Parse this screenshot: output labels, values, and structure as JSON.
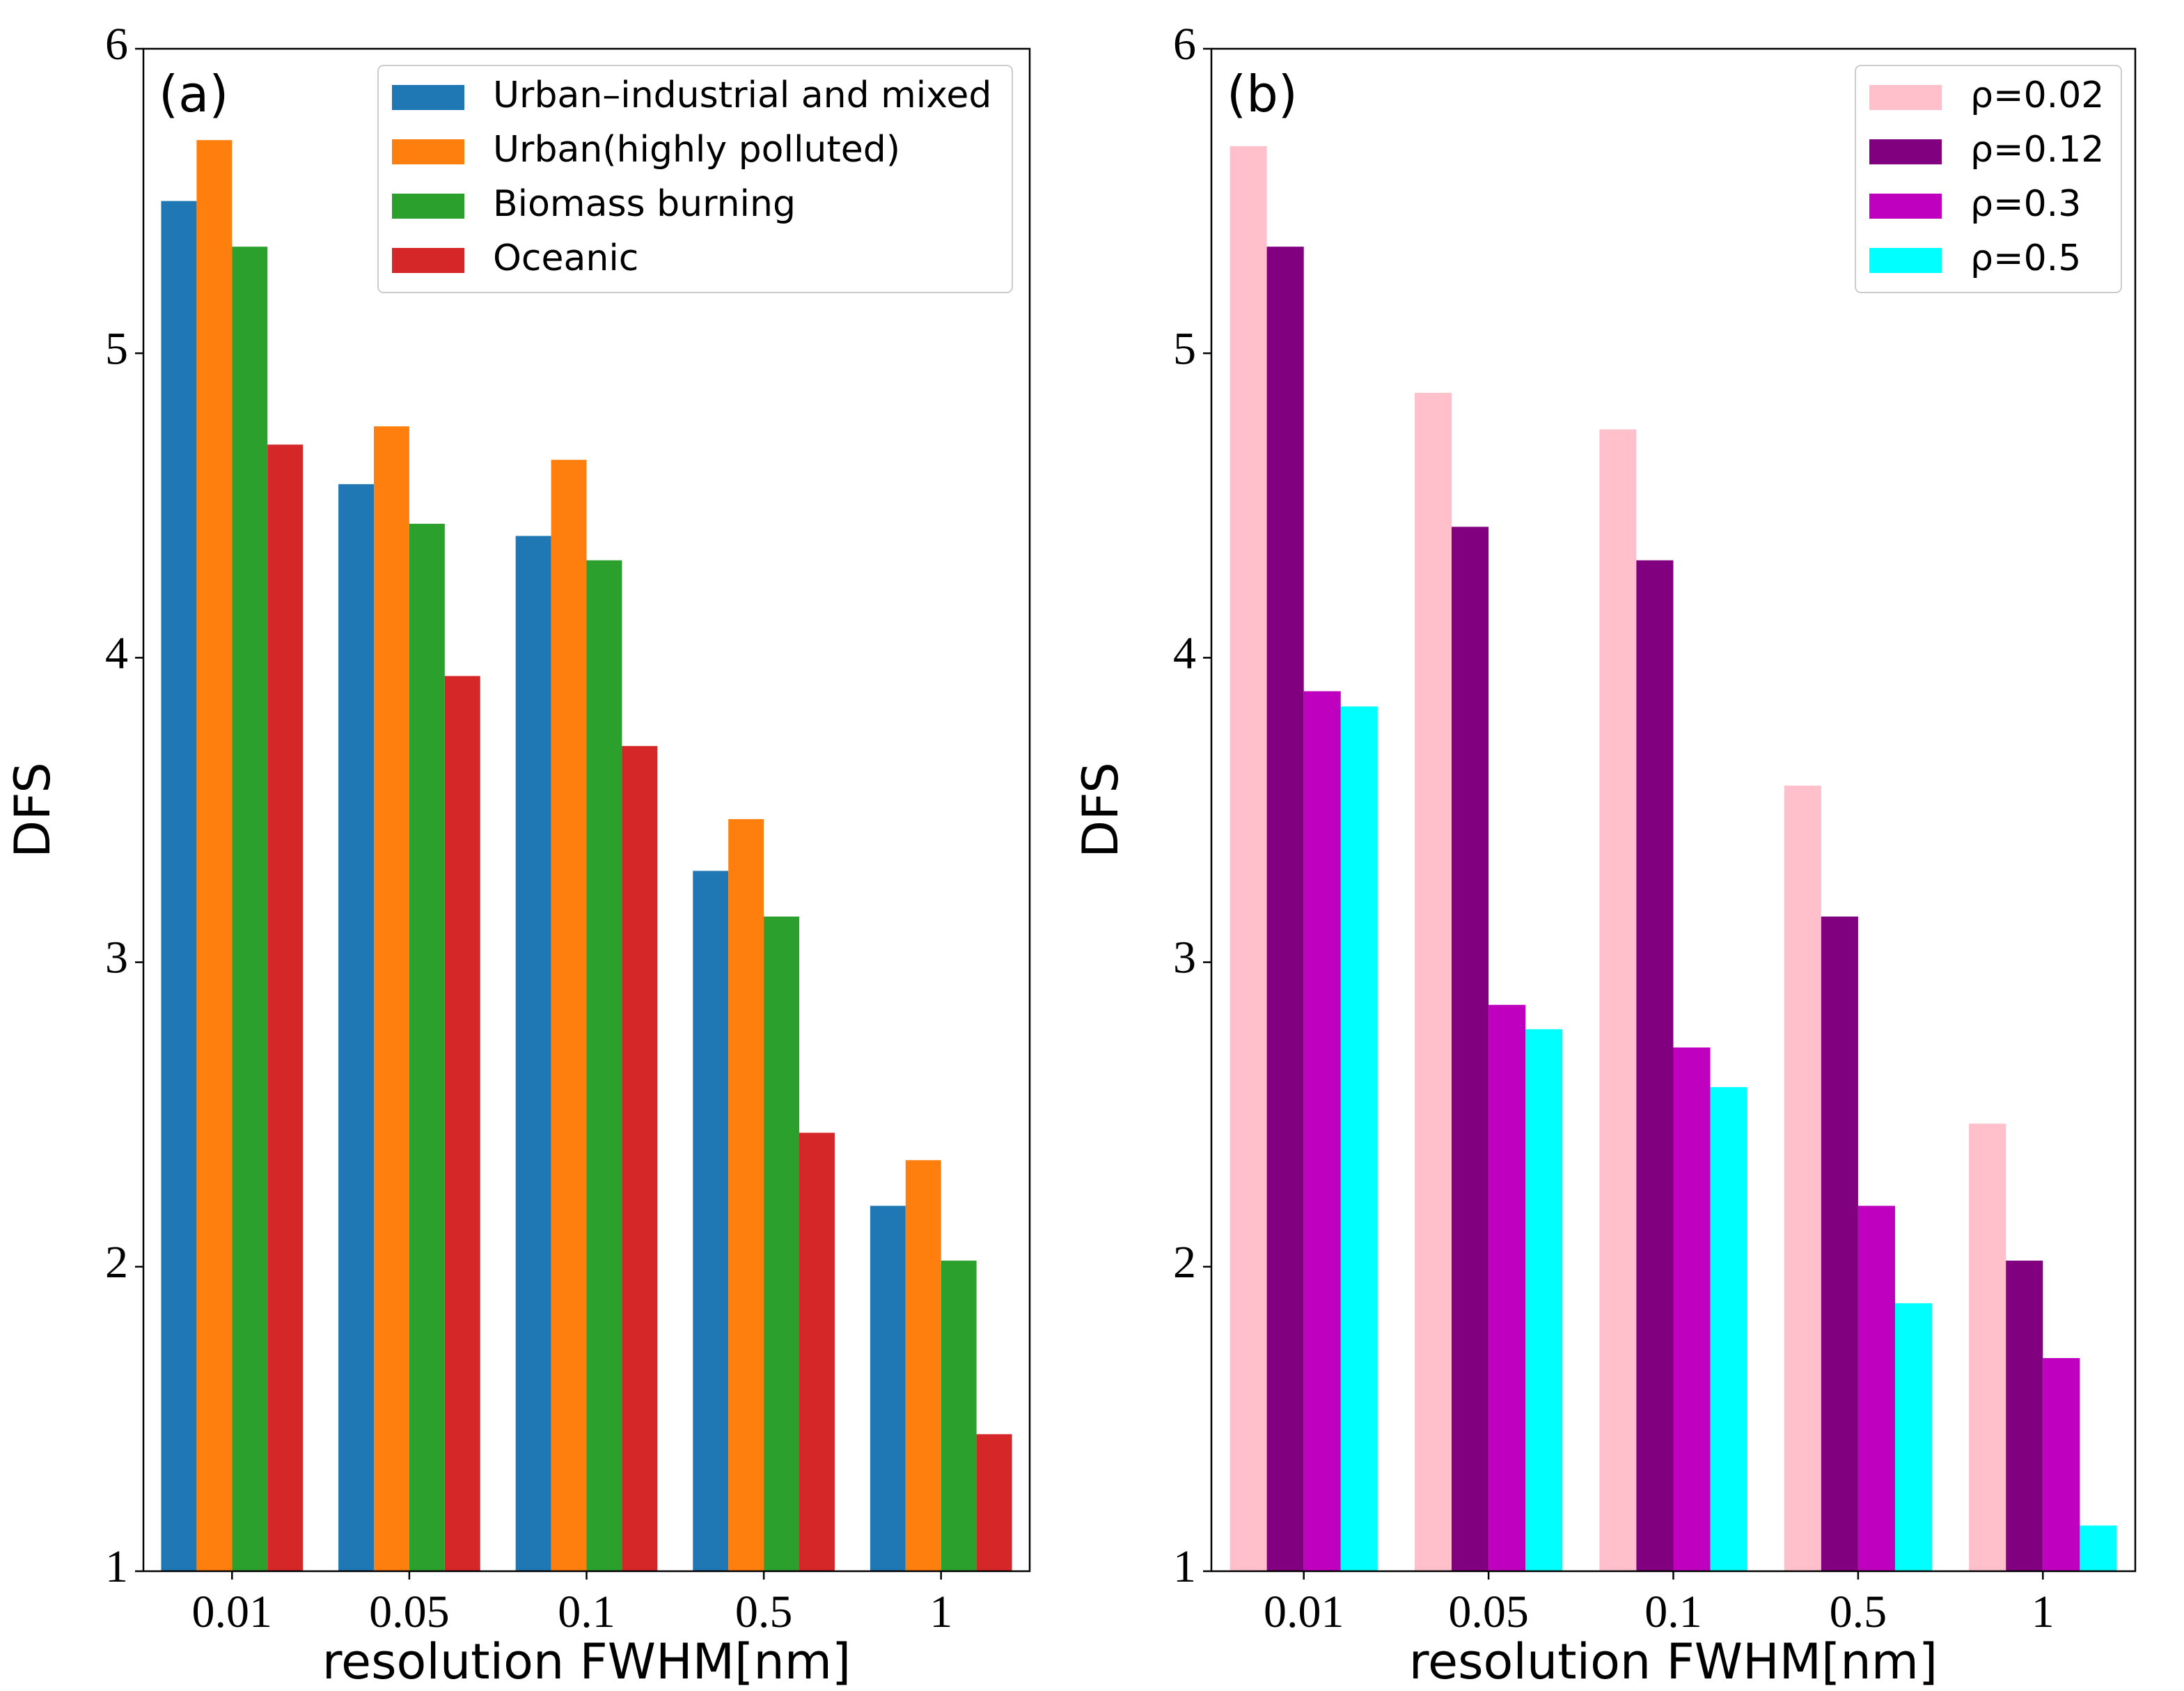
{
  "chart_data": [
    {
      "type": "bar",
      "panel_label": "(a)",
      "xlabel": "resolution FWHM[nm]",
      "ylabel": "DFS",
      "ylim": [
        1,
        6
      ],
      "yticks": [
        "1",
        "2",
        "3",
        "4",
        "5",
        "6"
      ],
      "categories": [
        "0.01",
        "0.05",
        "0.1",
        "0.5",
        "1"
      ],
      "legend_position": "top-right",
      "series": [
        {
          "name": "Urban–industrial and mixed",
          "color": "#1f77b4",
          "values": [
            5.5,
            4.57,
            4.4,
            3.3,
            2.2
          ]
        },
        {
          "name": "Urban(highly polluted)",
          "color": "#ff7f0e",
          "values": [
            5.7,
            4.76,
            4.65,
            3.47,
            2.35
          ]
        },
        {
          "name": "Biomass burning",
          "color": "#2ca02c",
          "values": [
            5.35,
            4.44,
            4.32,
            3.15,
            2.02
          ]
        },
        {
          "name": "Oceanic",
          "color": "#d62728",
          "values": [
            4.7,
            3.94,
            3.71,
            2.44,
            1.45
          ]
        }
      ]
    },
    {
      "type": "bar",
      "panel_label": "(b)",
      "xlabel": "resolution FWHM[nm]",
      "ylabel": "DFS",
      "ylim": [
        1,
        6
      ],
      "yticks": [
        "1",
        "2",
        "3",
        "4",
        "5",
        "6"
      ],
      "categories": [
        "0.01",
        "0.05",
        "0.1",
        "0.5",
        "1"
      ],
      "legend_position": "top-right",
      "series": [
        {
          "name": "ρ=0.02",
          "color": "#ffc0cb",
          "values": [
            5.68,
            4.87,
            4.75,
            3.58,
            2.47
          ]
        },
        {
          "name": "ρ=0.12",
          "color": "#800080",
          "values": [
            5.35,
            4.43,
            4.32,
            3.15,
            2.02
          ]
        },
        {
          "name": "ρ=0.3",
          "color": "#bf00bf",
          "values": [
            3.89,
            2.86,
            2.72,
            2.2,
            1.7
          ]
        },
        {
          "name": "ρ=0.5",
          "color": "#00ffff",
          "values": [
            3.84,
            2.78,
            2.59,
            1.88,
            1.15
          ]
        }
      ]
    }
  ]
}
